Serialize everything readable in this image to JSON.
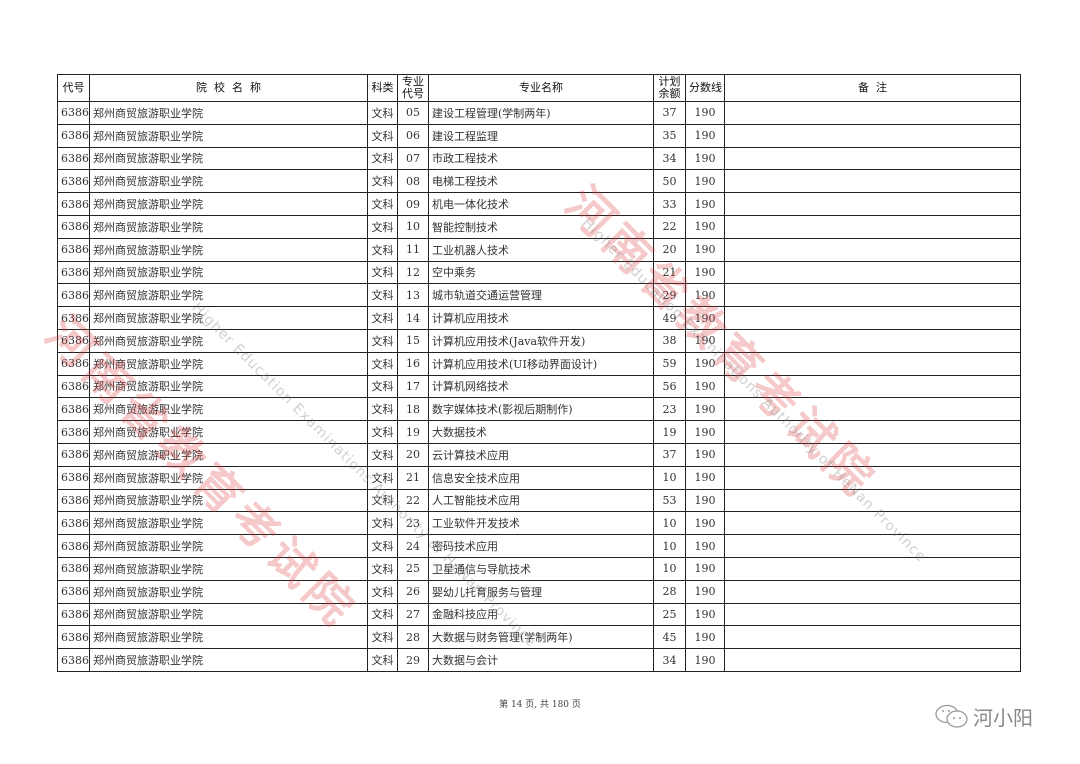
{
  "header": {
    "code": "代号",
    "school": "院  校  名  称",
    "category": "科类",
    "major_code": "专业\n代号",
    "major_name": "专业名称",
    "quota": "计划\n余额",
    "score": "分数线",
    "remark": "备  注"
  },
  "rows": [
    {
      "code": "6386",
      "school": "郑州商贸旅游职业学院",
      "category": "文科",
      "major_code": "05",
      "major_name": "建设工程管理(学制两年)",
      "quota": "37",
      "score": "190",
      "remark": ""
    },
    {
      "code": "6386",
      "school": "郑州商贸旅游职业学院",
      "category": "文科",
      "major_code": "06",
      "major_name": "建设工程监理",
      "quota": "35",
      "score": "190",
      "remark": ""
    },
    {
      "code": "6386",
      "school": "郑州商贸旅游职业学院",
      "category": "文科",
      "major_code": "07",
      "major_name": "市政工程技术",
      "quota": "34",
      "score": "190",
      "remark": ""
    },
    {
      "code": "6386",
      "school": "郑州商贸旅游职业学院",
      "category": "文科",
      "major_code": "08",
      "major_name": "电梯工程技术",
      "quota": "50",
      "score": "190",
      "remark": ""
    },
    {
      "code": "6386",
      "school": "郑州商贸旅游职业学院",
      "category": "文科",
      "major_code": "09",
      "major_name": "机电一体化技术",
      "quota": "33",
      "score": "190",
      "remark": ""
    },
    {
      "code": "6386",
      "school": "郑州商贸旅游职业学院",
      "category": "文科",
      "major_code": "10",
      "major_name": "智能控制技术",
      "quota": "22",
      "score": "190",
      "remark": ""
    },
    {
      "code": "6386",
      "school": "郑州商贸旅游职业学院",
      "category": "文科",
      "major_code": "11",
      "major_name": "工业机器人技术",
      "quota": "20",
      "score": "190",
      "remark": ""
    },
    {
      "code": "6386",
      "school": "郑州商贸旅游职业学院",
      "category": "文科",
      "major_code": "12",
      "major_name": "空中乘务",
      "quota": "21",
      "score": "190",
      "remark": ""
    },
    {
      "code": "6386",
      "school": "郑州商贸旅游职业学院",
      "category": "文科",
      "major_code": "13",
      "major_name": "城市轨道交通运营管理",
      "quota": "29",
      "score": "190",
      "remark": ""
    },
    {
      "code": "6386",
      "school": "郑州商贸旅游职业学院",
      "category": "文科",
      "major_code": "14",
      "major_name": "计算机应用技术",
      "quota": "49",
      "score": "190",
      "remark": ""
    },
    {
      "code": "6386",
      "school": "郑州商贸旅游职业学院",
      "category": "文科",
      "major_code": "15",
      "major_name": "计算机应用技术(Java软件开发)",
      "quota": "38",
      "score": "190",
      "remark": ""
    },
    {
      "code": "6386",
      "school": "郑州商贸旅游职业学院",
      "category": "文科",
      "major_code": "16",
      "major_name": "计算机应用技术(UI移动界面设计)",
      "quota": "59",
      "score": "190",
      "remark": ""
    },
    {
      "code": "6386",
      "school": "郑州商贸旅游职业学院",
      "category": "文科",
      "major_code": "17",
      "major_name": "计算机网络技术",
      "quota": "56",
      "score": "190",
      "remark": ""
    },
    {
      "code": "6386",
      "school": "郑州商贸旅游职业学院",
      "category": "文科",
      "major_code": "18",
      "major_name": "数字媒体技术(影视后期制作)",
      "quota": "23",
      "score": "190",
      "remark": ""
    },
    {
      "code": "6386",
      "school": "郑州商贸旅游职业学院",
      "category": "文科",
      "major_code": "19",
      "major_name": "大数据技术",
      "quota": "19",
      "score": "190",
      "remark": ""
    },
    {
      "code": "6386",
      "school": "郑州商贸旅游职业学院",
      "category": "文科",
      "major_code": "20",
      "major_name": "云计算技术应用",
      "quota": "37",
      "score": "190",
      "remark": ""
    },
    {
      "code": "6386",
      "school": "郑州商贸旅游职业学院",
      "category": "文科",
      "major_code": "21",
      "major_name": "信息安全技术应用",
      "quota": "10",
      "score": "190",
      "remark": ""
    },
    {
      "code": "6386",
      "school": "郑州商贸旅游职业学院",
      "category": "文科",
      "major_code": "22",
      "major_name": "人工智能技术应用",
      "quota": "53",
      "score": "190",
      "remark": ""
    },
    {
      "code": "6386",
      "school": "郑州商贸旅游职业学院",
      "category": "文科",
      "major_code": "23",
      "major_name": "工业软件开发技术",
      "quota": "10",
      "score": "190",
      "remark": ""
    },
    {
      "code": "6386",
      "school": "郑州商贸旅游职业学院",
      "category": "文科",
      "major_code": "24",
      "major_name": "密码技术应用",
      "quota": "10",
      "score": "190",
      "remark": ""
    },
    {
      "code": "6386",
      "school": "郑州商贸旅游职业学院",
      "category": "文科",
      "major_code": "25",
      "major_name": "卫星通信与导航技术",
      "quota": "10",
      "score": "190",
      "remark": ""
    },
    {
      "code": "6386",
      "school": "郑州商贸旅游职业学院",
      "category": "文科",
      "major_code": "26",
      "major_name": "婴幼儿托育服务与管理",
      "quota": "28",
      "score": "190",
      "remark": ""
    },
    {
      "code": "6386",
      "school": "郑州商贸旅游职业学院",
      "category": "文科",
      "major_code": "27",
      "major_name": "金融科技应用",
      "quota": "25",
      "score": "190",
      "remark": ""
    },
    {
      "code": "6386",
      "school": "郑州商贸旅游职业学院",
      "category": "文科",
      "major_code": "28",
      "major_name": "大数据与财务管理(学制两年)",
      "quota": "45",
      "score": "190",
      "remark": ""
    },
    {
      "code": "6386",
      "school": "郑州商贸旅游职业学院",
      "category": "文科",
      "major_code": "29",
      "major_name": "大数据与会计",
      "quota": "34",
      "score": "190",
      "remark": ""
    }
  ],
  "watermark": {
    "cn": "河南省教育考试院",
    "en": "Higher Education Examinations Authority of HeNan Province",
    "color": "#dc3c3c"
  },
  "footer": {
    "page_text": "第 14 页, 共 180 页"
  },
  "brand": {
    "name": "河小阳",
    "icon": "wechat-icon"
  }
}
